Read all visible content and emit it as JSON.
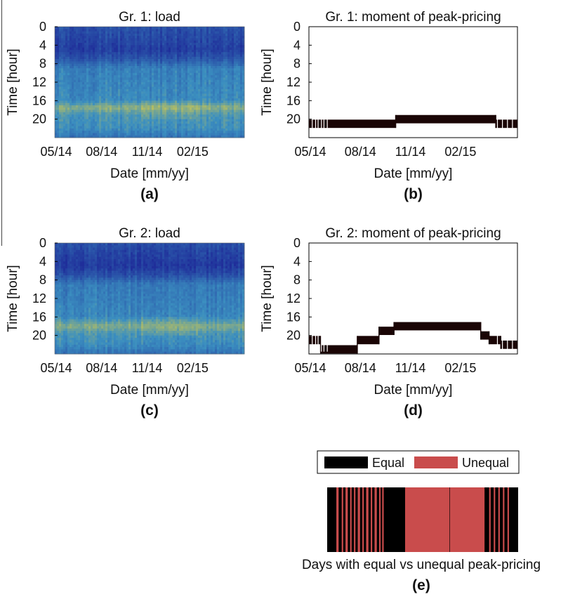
{
  "colors": {
    "equal": "#000000",
    "unequal": "#c94c4c",
    "heatmap_low": "#1f2e9a",
    "heatmap_mid": "#3b8fc0",
    "heatmap_high": "#e3cf3e"
  },
  "chart_data": [
    {
      "id": "a",
      "type": "heatmap",
      "panel_label": "(a)",
      "title": "Gr. 1: load",
      "xlabel": "Date [mm/yy]",
      "ylabel": "Time [hour]",
      "x_ticks": [
        "05/14",
        "08/14",
        "11/14",
        "02/15"
      ],
      "x_tick_months": [
        0,
        3,
        6,
        9
      ],
      "x_range_months": [
        0,
        12.5
      ],
      "y_ticks": [
        "0",
        "4",
        "8",
        "12",
        "16",
        "20"
      ],
      "y_tick_values": [
        0,
        4,
        8,
        12,
        16,
        20
      ],
      "ylim": [
        0,
        24
      ],
      "y_inverted": true,
      "profile": [
        {
          "hour": 0,
          "level": 0.18
        },
        {
          "hour": 3,
          "level": 0.12
        },
        {
          "hour": 5,
          "level": 0.08
        },
        {
          "hour": 7,
          "level": 0.2
        },
        {
          "hour": 9,
          "level": 0.42
        },
        {
          "hour": 13,
          "level": 0.45
        },
        {
          "hour": 16,
          "level": 0.48
        },
        {
          "hour": 17.5,
          "level": 0.75
        },
        {
          "hour": 19,
          "level": 0.55
        },
        {
          "hour": 22,
          "level": 0.5
        },
        {
          "hour": 24,
          "level": 0.35
        }
      ]
    },
    {
      "id": "b",
      "type": "step",
      "panel_label": "(b)",
      "title": "Gr. 1: moment of peak-pricing",
      "xlabel": "Date [mm/yy]",
      "ylabel": "Time [hour]",
      "x_ticks": [
        "05/14",
        "08/14",
        "11/14",
        "02/15"
      ],
      "x_tick_months": [
        0,
        3,
        6,
        9
      ],
      "x_range_months": [
        0,
        12.5
      ],
      "y_ticks": [
        "0",
        "4",
        "8",
        "12",
        "16",
        "20"
      ],
      "y_tick_values": [
        0,
        4,
        8,
        12,
        16,
        20
      ],
      "ylim": [
        0,
        24
      ],
      "y_inverted": true,
      "segments": [
        {
          "x0": 0,
          "x1": 5.2,
          "hour": 21
        },
        {
          "x0": 5.2,
          "x1": 11.2,
          "hour": 20
        },
        {
          "x0": 11.2,
          "x1": 12.5,
          "hour": 21
        }
      ]
    },
    {
      "id": "c",
      "type": "heatmap",
      "panel_label": "(c)",
      "title": "Gr. 2: load",
      "xlabel": "Date [mm/yy]",
      "ylabel": "Time [hour]",
      "x_ticks": [
        "05/14",
        "08/14",
        "11/14",
        "02/15"
      ],
      "x_tick_months": [
        0,
        3,
        6,
        9
      ],
      "x_range_months": [
        0,
        12.5
      ],
      "y_ticks": [
        "0",
        "4",
        "8",
        "12",
        "16",
        "20"
      ],
      "y_tick_values": [
        0,
        4,
        8,
        12,
        16,
        20
      ],
      "ylim": [
        0,
        24
      ],
      "y_inverted": true,
      "profile": [
        {
          "hour": 0,
          "level": 0.18
        },
        {
          "hour": 3,
          "level": 0.1
        },
        {
          "hour": 5,
          "level": 0.06
        },
        {
          "hour": 7,
          "level": 0.18
        },
        {
          "hour": 9,
          "level": 0.4
        },
        {
          "hour": 13,
          "level": 0.43
        },
        {
          "hour": 16,
          "level": 0.46
        },
        {
          "hour": 18,
          "level": 0.72
        },
        {
          "hour": 19.5,
          "level": 0.55
        },
        {
          "hour": 22,
          "level": 0.48
        },
        {
          "hour": 24,
          "level": 0.35
        }
      ]
    },
    {
      "id": "d",
      "type": "step",
      "panel_label": "(d)",
      "title": "Gr. 2: moment of peak-pricing",
      "xlabel": "Date [mm/yy]",
      "ylabel": "Time [hour]",
      "x_ticks": [
        "05/14",
        "08/14",
        "11/14",
        "02/15"
      ],
      "x_tick_months": [
        0,
        3,
        6,
        9
      ],
      "x_range_months": [
        0,
        12.5
      ],
      "y_ticks": [
        "0",
        "4",
        "8",
        "12",
        "16",
        "20"
      ],
      "y_tick_values": [
        0,
        4,
        8,
        12,
        16,
        20
      ],
      "ylim": [
        0,
        24
      ],
      "y_inverted": true,
      "segments": [
        {
          "x0": 0,
          "x1": 0.7,
          "hour": 21
        },
        {
          "x0": 0.7,
          "x1": 2.9,
          "hour": 23
        },
        {
          "x0": 2.9,
          "x1": 4.2,
          "hour": 21
        },
        {
          "x0": 4.2,
          "x1": 5.1,
          "hour": 19
        },
        {
          "x0": 5.1,
          "x1": 10.3,
          "hour": 18
        },
        {
          "x0": 10.3,
          "x1": 10.8,
          "hour": 20
        },
        {
          "x0": 10.8,
          "x1": 11.5,
          "hour": 21
        },
        {
          "x0": 11.5,
          "x1": 12.5,
          "hour": 22
        }
      ]
    },
    {
      "id": "e",
      "type": "bar",
      "panel_label": "(e)",
      "title": "Days with equal vs unequal peak-pricing",
      "legend": [
        "Equal",
        "Unequal"
      ],
      "legend_position": "top",
      "x_range_months": [
        0,
        12.5
      ],
      "unequal_spans": [
        {
          "x0": 0.6,
          "x1": 0.75
        },
        {
          "x0": 0.95,
          "x1": 1.05
        },
        {
          "x0": 1.2,
          "x1": 1.35
        },
        {
          "x0": 1.5,
          "x1": 1.6
        },
        {
          "x0": 1.75,
          "x1": 1.85
        },
        {
          "x0": 2.0,
          "x1": 2.15
        },
        {
          "x0": 2.3,
          "x1": 2.4
        },
        {
          "x0": 2.55,
          "x1": 2.7
        },
        {
          "x0": 2.85,
          "x1": 2.95
        },
        {
          "x0": 3.1,
          "x1": 3.25
        },
        {
          "x0": 3.4,
          "x1": 3.5
        },
        {
          "x0": 3.6,
          "x1": 3.7
        },
        {
          "x0": 5.1,
          "x1": 8.0
        },
        {
          "x0": 8.03,
          "x1": 10.3
        },
        {
          "x0": 10.6,
          "x1": 10.7
        },
        {
          "x0": 10.9,
          "x1": 11.0
        },
        {
          "x0": 11.2,
          "x1": 11.3
        },
        {
          "x0": 11.5,
          "x1": 11.6
        },
        {
          "x0": 11.8,
          "x1": 11.9
        }
      ]
    }
  ]
}
